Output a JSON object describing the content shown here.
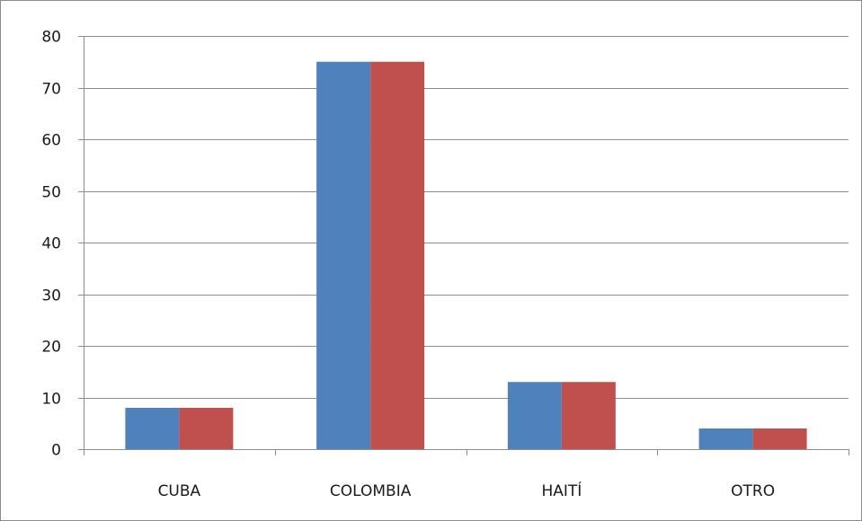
{
  "chart_data": {
    "type": "bar",
    "categories": [
      "CUBA",
      "COLOMBIA",
      "HAITÍ",
      "OTRO"
    ],
    "series": [
      {
        "values": [
          8,
          75,
          13,
          4
        ],
        "color": "#4f81bd"
      },
      {
        "values": [
          8,
          75,
          13,
          4
        ],
        "color": "#c0504d"
      }
    ],
    "ylim": [
      0,
      80
    ],
    "yticks": [
      "0",
      "10",
      "20",
      "30",
      "40",
      "50",
      "60",
      "70",
      "80"
    ],
    "grid": true,
    "legend": "none",
    "title": "",
    "xlabel": "",
    "ylabel": ""
  }
}
